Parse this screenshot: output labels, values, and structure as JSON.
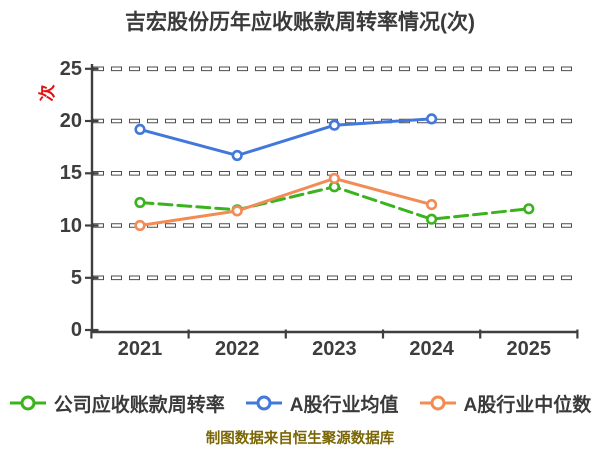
{
  "title": "吉宏股份历年应收账款周转率情况(次)",
  "y_axis_unit": "次",
  "caption": "制图数据来自恒生聚源数据库",
  "colors": {
    "title_text": "#3a3a3a",
    "axis_text": "#3d3d3d",
    "axis_line": "#3f3f3f",
    "gridline_edge": "#4d4d4d",
    "gridline_core": "#ffffff",
    "unit_label": "#e31212",
    "caption_text": "#7a6604",
    "company_green": "#3ab31c",
    "industry_mean_blue": "#4277db",
    "industry_median_orange": "#f28c54"
  },
  "chart_data": {
    "type": "line",
    "title": "吉宏股份历年应收账款周转率情况(次)",
    "categories": [
      "2021",
      "2022",
      "2023",
      "2024",
      "2025"
    ],
    "yticks": [
      0,
      5,
      10,
      15,
      20,
      25
    ],
    "ylim": [
      0,
      25
    ],
    "ylabel": "次",
    "xlabel": "",
    "grid": "dashed-horizontal",
    "legend_position": "bottom",
    "series": [
      {
        "name": "公司应收账款周转率",
        "color": "#3ab31c",
        "line_style": "dashed",
        "marker": "circle-white-fill",
        "values": [
          12.2,
          11.5,
          13.7,
          10.6,
          11.6
        ]
      },
      {
        "name": "A股行业均值",
        "color": "#4277db",
        "line_style": "solid",
        "marker": "circle-white-fill",
        "values": [
          19.2,
          16.7,
          19.6,
          20.2,
          null
        ]
      },
      {
        "name": "A股行业中位数",
        "color": "#f28c54",
        "line_style": "solid",
        "marker": "circle-white-fill",
        "values": [
          10.0,
          11.4,
          14.5,
          12.0,
          null
        ]
      }
    ]
  }
}
